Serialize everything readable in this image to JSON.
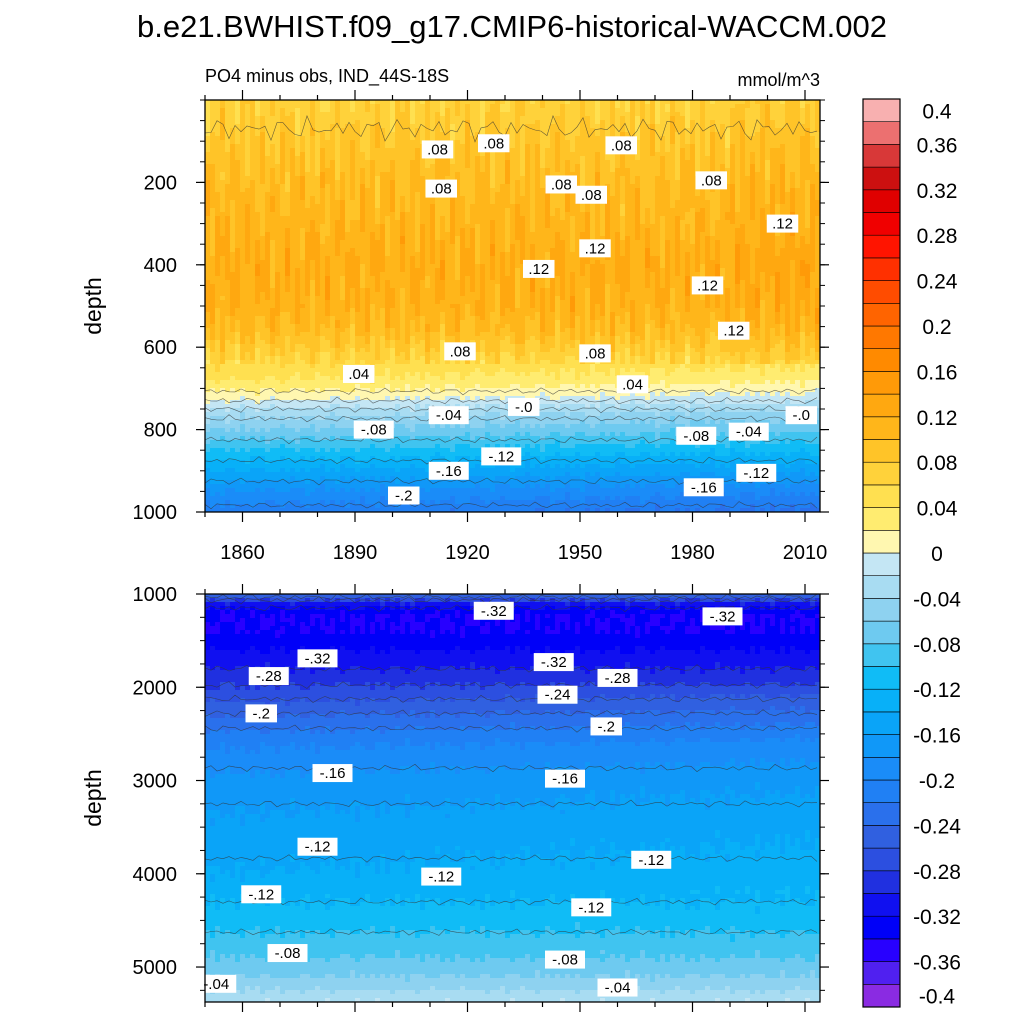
{
  "chart_data": {
    "type": "heatmap",
    "title": "b.e21.BWHIST.f09_g17.CMIP6-historical-WACCM.002",
    "subtitle_left": "PO4 minus obs, IND_44S-18S",
    "subtitle_right": "mmol/m^3",
    "x": {
      "label": "",
      "range": [
        1850,
        2014
      ],
      "ticks": [
        1860,
        1890,
        1920,
        1950,
        1980,
        2010
      ],
      "tick_labels": [
        "1860",
        "1890",
        "1920",
        "1950",
        "1980",
        "2010"
      ]
    },
    "panels": [
      {
        "name": "upper",
        "ylabel": "depth",
        "ylim": [
          0,
          1000
        ],
        "y_inverted": true,
        "y_ticks": [
          200,
          400,
          600,
          800,
          1000
        ],
        "y_tick_labels": [
          "200",
          "400",
          "600",
          "800",
          "1000"
        ],
        "depth_profile": [
          [
            0,
            0.07
          ],
          [
            40,
            0.075
          ],
          [
            100,
            0.085
          ],
          [
            200,
            0.1
          ],
          [
            300,
            0.11
          ],
          [
            400,
            0.12
          ],
          [
            500,
            0.115
          ],
          [
            560,
            0.1
          ],
          [
            600,
            0.08
          ],
          [
            640,
            0.06
          ],
          [
            680,
            0.04
          ],
          [
            720,
            0.01
          ],
          [
            740,
            -0.01
          ],
          [
            760,
            -0.03
          ],
          [
            800,
            -0.06
          ],
          [
            850,
            -0.1
          ],
          [
            900,
            -0.14
          ],
          [
            950,
            -0.18
          ],
          [
            1000,
            -0.21
          ]
        ],
        "contour_labels": [
          {
            "text": ".08",
            "year": 1912,
            "depth": 120
          },
          {
            "text": ".08",
            "year": 1927,
            "depth": 105
          },
          {
            "text": ".08",
            "year": 1961,
            "depth": 110
          },
          {
            "text": ".08",
            "year": 1913,
            "depth": 215
          },
          {
            "text": ".08",
            "year": 1945,
            "depth": 205
          },
          {
            "text": ".08",
            "year": 1953,
            "depth": 230
          },
          {
            "text": ".08",
            "year": 1985,
            "depth": 195
          },
          {
            "text": ".12",
            "year": 2004,
            "depth": 300
          },
          {
            "text": ".12",
            "year": 1954,
            "depth": 360
          },
          {
            "text": ".12",
            "year": 1939,
            "depth": 410
          },
          {
            "text": ".12",
            "year": 1984,
            "depth": 450
          },
          {
            "text": ".12",
            "year": 1991,
            "depth": 560
          },
          {
            "text": ".08",
            "year": 1918,
            "depth": 610
          },
          {
            "text": ".08",
            "year": 1954,
            "depth": 615
          },
          {
            "text": ".04",
            "year": 1891,
            "depth": 665
          },
          {
            "text": ".04",
            "year": 1964,
            "depth": 690
          },
          {
            "text": "-.0",
            "year": 1935,
            "depth": 745
          },
          {
            "text": "-.0",
            "year": 2009,
            "depth": 765
          },
          {
            "text": "-.04",
            "year": 1915,
            "depth": 765
          },
          {
            "text": "-.04",
            "year": 1995,
            "depth": 805
          },
          {
            "text": "-.08",
            "year": 1895,
            "depth": 800
          },
          {
            "text": "-.08",
            "year": 1981,
            "depth": 815
          },
          {
            "text": "-.12",
            "year": 1929,
            "depth": 865
          },
          {
            "text": "-.12",
            "year": 1997,
            "depth": 905
          },
          {
            "text": "-.16",
            "year": 1915,
            "depth": 900
          },
          {
            "text": "-.16",
            "year": 1983,
            "depth": 940
          },
          {
            "text": "-.2",
            "year": 1903,
            "depth": 960
          }
        ]
      },
      {
        "name": "lower",
        "ylabel": "depth",
        "ylim": [
          1000,
          5375
        ],
        "y_inverted": true,
        "y_ticks": [
          1000,
          2000,
          3000,
          4000,
          5000
        ],
        "y_tick_labels": [
          "1000",
          "2000",
          "3000",
          "4000",
          "5000"
        ],
        "depth_profile": [
          [
            1000,
            -0.24
          ],
          [
            1100,
            -0.3
          ],
          [
            1200,
            -0.34
          ],
          [
            1400,
            -0.34
          ],
          [
            1600,
            -0.32
          ],
          [
            1900,
            -0.29
          ],
          [
            2200,
            -0.25
          ],
          [
            2600,
            -0.2
          ],
          [
            3000,
            -0.17
          ],
          [
            3500,
            -0.15
          ],
          [
            4000,
            -0.135
          ],
          [
            4400,
            -0.115
          ],
          [
            4700,
            -0.095
          ],
          [
            4900,
            -0.08
          ],
          [
            5100,
            -0.06
          ],
          [
            5250,
            -0.04
          ],
          [
            5375,
            -0.02
          ]
        ],
        "contour_labels": [
          {
            "text": "-.32",
            "year": 1927,
            "depth": 1180
          },
          {
            "text": "-.32",
            "year": 1988,
            "depth": 1240
          },
          {
            "text": "-.32",
            "year": 1880,
            "depth": 1690
          },
          {
            "text": "-.32",
            "year": 1943,
            "depth": 1730
          },
          {
            "text": "-.28",
            "year": 1867,
            "depth": 1880
          },
          {
            "text": "-.28",
            "year": 1960,
            "depth": 1900
          },
          {
            "text": "-.24",
            "year": 1944,
            "depth": 2080
          },
          {
            "text": "-.2",
            "year": 1865,
            "depth": 2280
          },
          {
            "text": "-.2",
            "year": 1957,
            "depth": 2420
          },
          {
            "text": "-.16",
            "year": 1884,
            "depth": 2920
          },
          {
            "text": "-.16",
            "year": 1946,
            "depth": 2980
          },
          {
            "text": "-.12",
            "year": 1880,
            "depth": 3710
          },
          {
            "text": "-.12",
            "year": 1913,
            "depth": 4030
          },
          {
            "text": "-.12",
            "year": 1969,
            "depth": 3850
          },
          {
            "text": "-.12",
            "year": 1865,
            "depth": 4220
          },
          {
            "text": "-.12",
            "year": 1953,
            "depth": 4360
          },
          {
            "text": "-.08",
            "year": 1872,
            "depth": 4850
          },
          {
            "text": "-.08",
            "year": 1946,
            "depth": 4920
          },
          {
            "text": "-.04",
            "year": 1853,
            "depth": 5180
          },
          {
            "text": "-.04",
            "year": 1960,
            "depth": 5220
          }
        ]
      }
    ],
    "colorbar": {
      "levels": [
        -0.4,
        -0.38,
        -0.36,
        -0.34,
        -0.32,
        -0.3,
        -0.28,
        -0.26,
        -0.24,
        -0.22,
        -0.2,
        -0.18,
        -0.16,
        -0.14,
        -0.12,
        -0.1,
        -0.08,
        -0.06,
        -0.04,
        -0.02,
        0,
        0.02,
        0.04,
        0.06,
        0.08,
        0.1,
        0.12,
        0.14,
        0.16,
        0.18,
        0.2,
        0.22,
        0.24,
        0.26,
        0.28,
        0.3,
        0.32,
        0.34,
        0.36,
        0.38,
        0.4
      ],
      "label_values": [
        -0.4,
        -0.36,
        -0.32,
        -0.28,
        -0.24,
        -0.2,
        -0.16,
        -0.12,
        -0.08,
        -0.04,
        0,
        0.04,
        0.08,
        0.12,
        0.16,
        0.2,
        0.24,
        0.28,
        0.32,
        0.36,
        0.4
      ],
      "labels": [
        "-0.4",
        "-0.36",
        "-0.32",
        "-0.28",
        "-0.24",
        "-0.2",
        "-0.16",
        "-0.12",
        "-0.08",
        "-0.04",
        "0",
        "0.04",
        "0.08",
        "0.12",
        "0.16",
        "0.2",
        "0.24",
        "0.28",
        "0.32",
        "0.36",
        "0.4"
      ],
      "colors": [
        "#8a2be2",
        "#5020f0",
        "#2800ff",
        "#0000f8",
        "#1010f0",
        "#2030e0",
        "#2c4fe0",
        "#3060e0",
        "#2a70ec",
        "#2080f4",
        "#1a8cf8",
        "#1098f8",
        "#0aa4f8",
        "#08b0f8",
        "#10bcf6",
        "#40c4f0",
        "#6ecaf0",
        "#8ed2f0",
        "#a8dcf2",
        "#c4e6f4",
        "#fff7b0",
        "#ffec70",
        "#ffe050",
        "#ffd23a",
        "#ffc428",
        "#ffb61a",
        "#ffa810",
        "#ff9a08",
        "#ff8a00",
        "#ff7800",
        "#ff6400",
        "#ff4c00",
        "#ff3000",
        "#ff1400",
        "#f00000",
        "#e00000",
        "#cc1010",
        "#d83838",
        "#ec7070",
        "#f8b0b0"
      ]
    }
  }
}
